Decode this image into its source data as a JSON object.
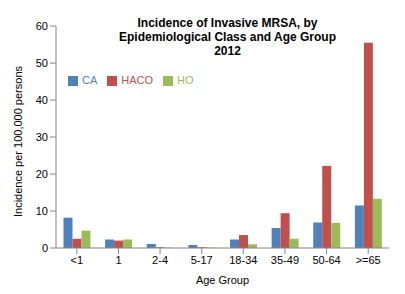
{
  "chart_data": {
    "type": "bar",
    "title": "Incidence of Invasive MRSA, by\nEpidemiological Class and Age Group\n2012",
    "x_label": "Age Group",
    "y_label": "Incidence per 100,000 persons",
    "categories": [
      "<1",
      "1",
      "2-4",
      "5-17",
      "18-34",
      "35-49",
      "50-64",
      ">=65"
    ],
    "series": [
      {
        "name": "CA",
        "color": "#4F81BD",
        "values": [
          8.2,
          2.3,
          1.1,
          0.8,
          2.3,
          5.4,
          6.9,
          11.5
        ]
      },
      {
        "name": "HACO",
        "color": "#C0504D",
        "values": [
          2.5,
          2.0,
          0.2,
          0.2,
          3.5,
          9.4,
          22.2,
          55.5
        ]
      },
      {
        "name": "HO",
        "color": "#9BBB59",
        "values": [
          4.7,
          2.3,
          0.1,
          0.1,
          1.0,
          2.5,
          6.8,
          13.3
        ]
      }
    ],
    "ylim": [
      0,
      60
    ],
    "yticks": [
      0,
      10,
      20,
      30,
      40,
      50,
      60
    ],
    "grid": false,
    "legend": "upper left"
  }
}
